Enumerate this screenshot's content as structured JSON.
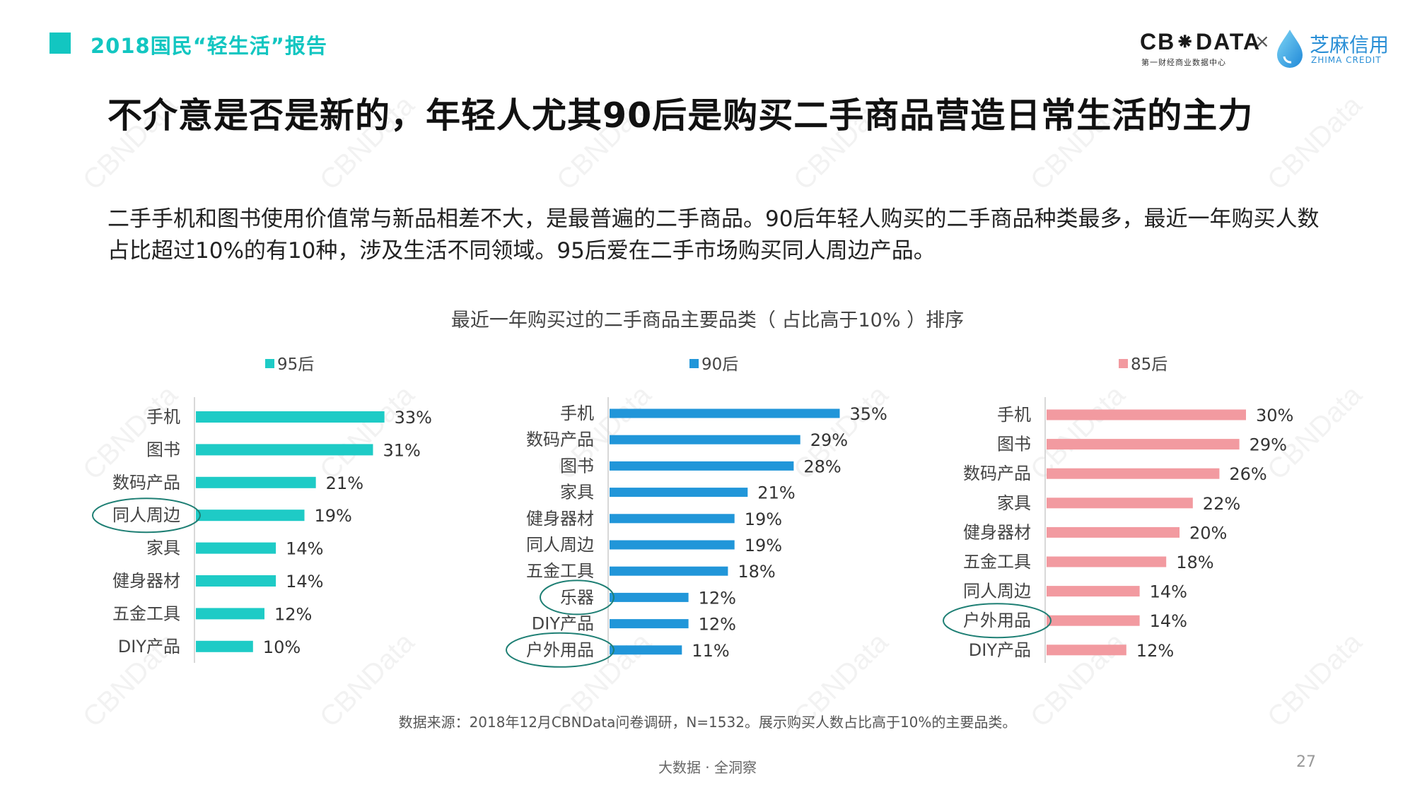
{
  "header": {
    "report_title": "2018国民“轻生活”报告",
    "brand_cbn": "CB⁕DATA",
    "brand_cbn_sub": "第一财经商业数据中心",
    "brand_x": "×",
    "brand_zhima": "芝麻信用",
    "brand_zhima_sub": "ZHIMA CREDIT"
  },
  "main_title": "不介意是否是新的，年轻人尤其90后是购买二手商品营造日常生活的主力",
  "summary": "二手手机和图书使用价值常与新品相差不大，是最普遍的二手商品。90后年轻人购买的二手商品种类最多，最近一年购买人数占比超过10%的有10种，涉及生活不同领域。95后爱在二手市场购买同人周边产品。",
  "chart_title": "最近一年购买过的二手商品主要品类（ 占比高于10% ）排序",
  "watermark": "CBNData",
  "chart_data": [
    {
      "type": "bar",
      "orientation": "horizontal",
      "series": [
        {
          "name": "95后",
          "color": "#1ecbc6",
          "categories": [
            "手机",
            "图书",
            "数码产品",
            "同人周边",
            "家具",
            "健身器材",
            "五金工具",
            "DIY产品"
          ],
          "values": [
            33,
            31,
            21,
            19,
            14,
            14,
            12,
            10
          ]
        }
      ],
      "unit": "%",
      "highlighted": [
        "同人周边"
      ]
    },
    {
      "type": "bar",
      "orientation": "horizontal",
      "series": [
        {
          "name": "90后",
          "color": "#2196d9",
          "categories": [
            "手机",
            "数码产品",
            "图书",
            "家具",
            "健身器材",
            "同人周边",
            "五金工具",
            "乐器",
            "DIY产品",
            "户外用品"
          ],
          "values": [
            35,
            29,
            28,
            21,
            19,
            19,
            18,
            12,
            12,
            11
          ]
        }
      ],
      "unit": "%",
      "highlighted": [
        "乐器",
        "户外用品"
      ]
    },
    {
      "type": "bar",
      "orientation": "horizontal",
      "series": [
        {
          "name": "85后",
          "color": "#f29aa0",
          "categories": [
            "手机",
            "图书",
            "数码产品",
            "家具",
            "健身器材",
            "五金工具",
            "同人周边",
            "户外用品",
            "DIY产品"
          ],
          "values": [
            30,
            29,
            26,
            22,
            20,
            18,
            14,
            14,
            12
          ]
        }
      ],
      "unit": "%",
      "highlighted": [
        "户外用品"
      ]
    }
  ],
  "source": "数据来源：2018年12月CBNData问卷调研，N=1532。展示购买人数占比高于10%的主要品类。",
  "footer_slogan": "大数据 · 全洞察",
  "page_number": "27",
  "colors": {
    "accent": "#12c6c1",
    "circle": "#1e7f74"
  }
}
